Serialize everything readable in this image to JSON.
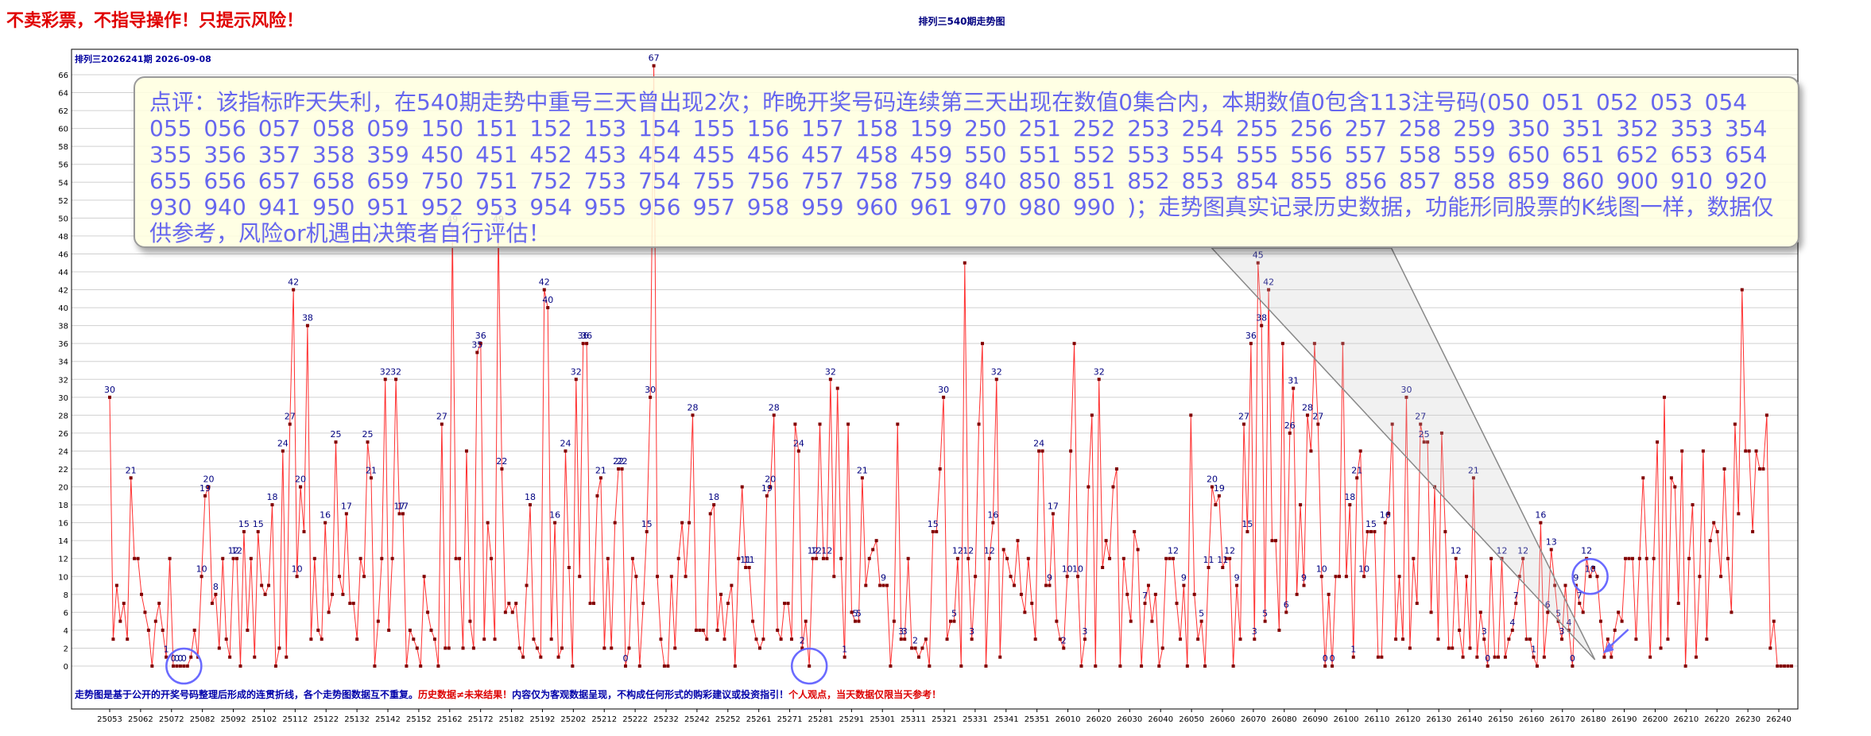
{
  "header": {
    "warning": "不卖彩票，不指导操作！只提示风险！",
    "title": "排列三540期走势图",
    "period": "排列三2026241期  2026-09-08"
  },
  "comment": {
    "text": "点评：该指标昨天失利，在540期走势中重号三天曾出现2次；昨晚开奖号码连续第三天出现在数值0集合内，本期数值0包含113注号码(050  051  052  053  054  055  056  057  058  059  150  151  152  153  154  155  156  157  158  159  250  251  252  253  254  255  256  257  258  259  350  351  352  353  354  355  356  357  358  359  450  451  452  453  454  455  456  457  458  459  550  551  552  553  554  555  556  557  558  559  650  651  652  653  654  655  656  657  658  659  750  751  752  753  754  755  756  757  758  759  840  850  851  852  853  854  855  856  857  858  859  860  900  910  920  930  940  941  950  951  952  953  954  955  956  957  958  959  960  961  970  980  990 )；走势图真实记录历史数据，功能形同股票的K线图一样，数据仅供参考，风险or机遇由决策者自行评估！"
  },
  "footnote": {
    "part1": "走势图是基于公开的开奖号码整理后形成的连贯折线，各个走势图数据互不重复。",
    "part2": "历史数据≠未来结果！",
    "part3": "内容仅为客观数据呈现，不构成任何形式的购彩建议或投资指引！",
    "part4": "个人观点，当天数据仅限当天参考！"
  },
  "colors": {
    "line": "#ff3030",
    "point": "#800000",
    "label": "#000080",
    "circle": "#6a6aff",
    "grid": "#d0d0d0"
  },
  "chart_data": {
    "type": "line",
    "ylim": [
      0,
      68
    ],
    "y_ticks": [
      0,
      2,
      4,
      6,
      8,
      10,
      12,
      14,
      16,
      18,
      20,
      22,
      24,
      26,
      28,
      30,
      32,
      34,
      36,
      38,
      40,
      42,
      44,
      46,
      48,
      50,
      52,
      54,
      56,
      58,
      60,
      62,
      64,
      66
    ],
    "x_ticks": [
      "25053",
      "25062",
      "25072",
      "25082",
      "25092",
      "25102",
      "25112",
      "25122",
      "25132",
      "25142",
      "25152",
      "25162",
      "25172",
      "25182",
      "25192",
      "25202",
      "25212",
      "25222",
      "25232",
      "25242",
      "25252",
      "25261",
      "25271",
      "25281",
      "25291",
      "25301",
      "25311",
      "25321",
      "25331",
      "25341",
      "25351",
      "26010",
      "26020",
      "26030",
      "26040",
      "26050",
      "26060",
      "26070",
      "26080",
      "26090",
      "26100",
      "26110",
      "26120",
      "26130",
      "26140",
      "26150",
      "26160",
      "26170",
      "26180",
      "26190",
      "26200",
      "26210",
      "26220",
      "26230",
      "26240"
    ],
    "series": [
      {
        "values": [
          30,
          3,
          9,
          5,
          7,
          3,
          21,
          12,
          12,
          8,
          6,
          4,
          0,
          5,
          7,
          4,
          1,
          12,
          0,
          0,
          0,
          0,
          0,
          1,
          4,
          1,
          10,
          19,
          20,
          7,
          8,
          2,
          12,
          3,
          1,
          12,
          12,
          0,
          15,
          4,
          12,
          1,
          15,
          9,
          8,
          9,
          18,
          0,
          2,
          24,
          1,
          27,
          42,
          10,
          20,
          15,
          38,
          3,
          12,
          4,
          3,
          16,
          6,
          8,
          25,
          10,
          8,
          17,
          7,
          7,
          3,
          12,
          10,
          25,
          21,
          0,
          5,
          12,
          32,
          4,
          12,
          32,
          17,
          17,
          0,
          4,
          3,
          2,
          0,
          10,
          6,
          4,
          3,
          0,
          27,
          2,
          2,
          49,
          12,
          12,
          2,
          24,
          5,
          2,
          35,
          36,
          3,
          16,
          12,
          3,
          49,
          22,
          6,
          7,
          6,
          7,
          2,
          1,
          9,
          18,
          3,
          2,
          1,
          42,
          40,
          3,
          16,
          1,
          2,
          24,
          11,
          0,
          32,
          10,
          36,
          36,
          7,
          7,
          19,
          21,
          2,
          12,
          2,
          16,
          22,
          22,
          0,
          2,
          12,
          10,
          0,
          7,
          15,
          30,
          67,
          10,
          3,
          0,
          0,
          10,
          2,
          12,
          16,
          10,
          16,
          28,
          4,
          4,
          4,
          3,
          17,
          18,
          4,
          8,
          3,
          7,
          9,
          0,
          12,
          20,
          11,
          11,
          5,
          3,
          2,
          3,
          19,
          20,
          28,
          4,
          3,
          7,
          7,
          3,
          27,
          24,
          2,
          5,
          0,
          12,
          12,
          27,
          12,
          12,
          32,
          10,
          31,
          12,
          1,
          27,
          6,
          5,
          5,
          21,
          9,
          12,
          13,
          14,
          9,
          9,
          9,
          0,
          5,
          27,
          3,
          3,
          12,
          2,
          2,
          1,
          2,
          3,
          0,
          15,
          15,
          22,
          30,
          3,
          5,
          5,
          12,
          0,
          45,
          12,
          3,
          10,
          27,
          36,
          0,
          12,
          16,
          32,
          1,
          13,
          12,
          10,
          9,
          14,
          8,
          6,
          12,
          7,
          3,
          24,
          24,
          9,
          9,
          17,
          5,
          3,
          2,
          10,
          24,
          36,
          10,
          0,
          3,
          20,
          28,
          0,
          32,
          11,
          14,
          12,
          20,
          22,
          0,
          12,
          8,
          5,
          15,
          13,
          0,
          7,
          9,
          5,
          8,
          0,
          2,
          12,
          12,
          12,
          7,
          3,
          9,
          0,
          28,
          8,
          3,
          5,
          0,
          11,
          20,
          18,
          19,
          11,
          12,
          12,
          0,
          9,
          3,
          27,
          15,
          36,
          3,
          45,
          38,
          5,
          42,
          14,
          14,
          4,
          36,
          6,
          26,
          31,
          8,
          18,
          9,
          28,
          24,
          36,
          27,
          10,
          0,
          8,
          0,
          10,
          10,
          36,
          10,
          18,
          1,
          21,
          24,
          10,
          15,
          15,
          15,
          1,
          1,
          16,
          17,
          27,
          3,
          10,
          3,
          30,
          2,
          12,
          7,
          27,
          25,
          25,
          6,
          20,
          3,
          26,
          15,
          2,
          2,
          12,
          4,
          1,
          10,
          2,
          21,
          1,
          6,
          3,
          0,
          12,
          1,
          1,
          12,
          1,
          3,
          4,
          7,
          10,
          12,
          3,
          3,
          1,
          0,
          16,
          1,
          6,
          13,
          9,
          5,
          3,
          9,
          4,
          0,
          9,
          7,
          6,
          12,
          10,
          11,
          10,
          5,
          1,
          3,
          1,
          4,
          6,
          5,
          12,
          12,
          12,
          3,
          12,
          21,
          12,
          1,
          12,
          25,
          2,
          30,
          3,
          21,
          20,
          7,
          24,
          0,
          12,
          18,
          1,
          10,
          24,
          3,
          14,
          16,
          15,
          10,
          22,
          12,
          6,
          27,
          17,
          42,
          24,
          24,
          15,
          24,
          22,
          22,
          28,
          2,
          5,
          0,
          0,
          0,
          0,
          0
        ]
      }
    ],
    "labeled_indices": [
      0,
      6,
      16,
      18,
      19,
      20,
      21,
      26,
      27,
      28,
      30,
      35,
      36,
      38,
      42,
      46,
      49,
      51,
      52,
      53,
      54,
      56,
      61,
      64,
      67,
      73,
      74,
      78,
      81,
      82,
      83,
      94,
      97,
      104,
      105,
      110,
      111,
      119,
      123,
      124,
      126,
      129,
      132,
      134,
      135,
      139,
      144,
      145,
      146,
      152,
      153,
      154,
      165,
      171,
      180,
      181,
      186,
      187,
      188,
      195,
      196,
      199,
      200,
      203,
      204,
      208,
      211,
      212,
      213,
      219,
      224,
      225,
      228,
      233,
      236,
      239,
      240,
      243,
      244,
      249,
      250,
      251,
      263,
      266,
      267,
      270,
      271,
      274,
      276,
      280,
      293,
      301,
      304,
      309,
      311,
      312,
      314,
      315,
      317,
      319,
      321,
      322,
      323,
      324,
      325,
      326,
      327,
      328,
      333,
      334,
      335,
      338,
      339,
      342,
      343,
      344,
      346,
      351,
      352,
      353,
      355,
      357,
      361,
      367,
      371,
      372,
      381,
      386,
      389,
      390,
      394,
      397,
      398,
      400,
      403,
      405,
      407,
      408,
      410,
      411,
      413,
      414,
      415,
      416,
      418,
      419
    ],
    "markers": [
      {
        "type": "circle",
        "index": 21
      },
      {
        "type": "circle",
        "index": 198
      },
      {
        "type": "circle",
        "index": 419
      }
    ],
    "callout_pointers": [
      311,
      419
    ],
    "label_font_size": 11
  }
}
